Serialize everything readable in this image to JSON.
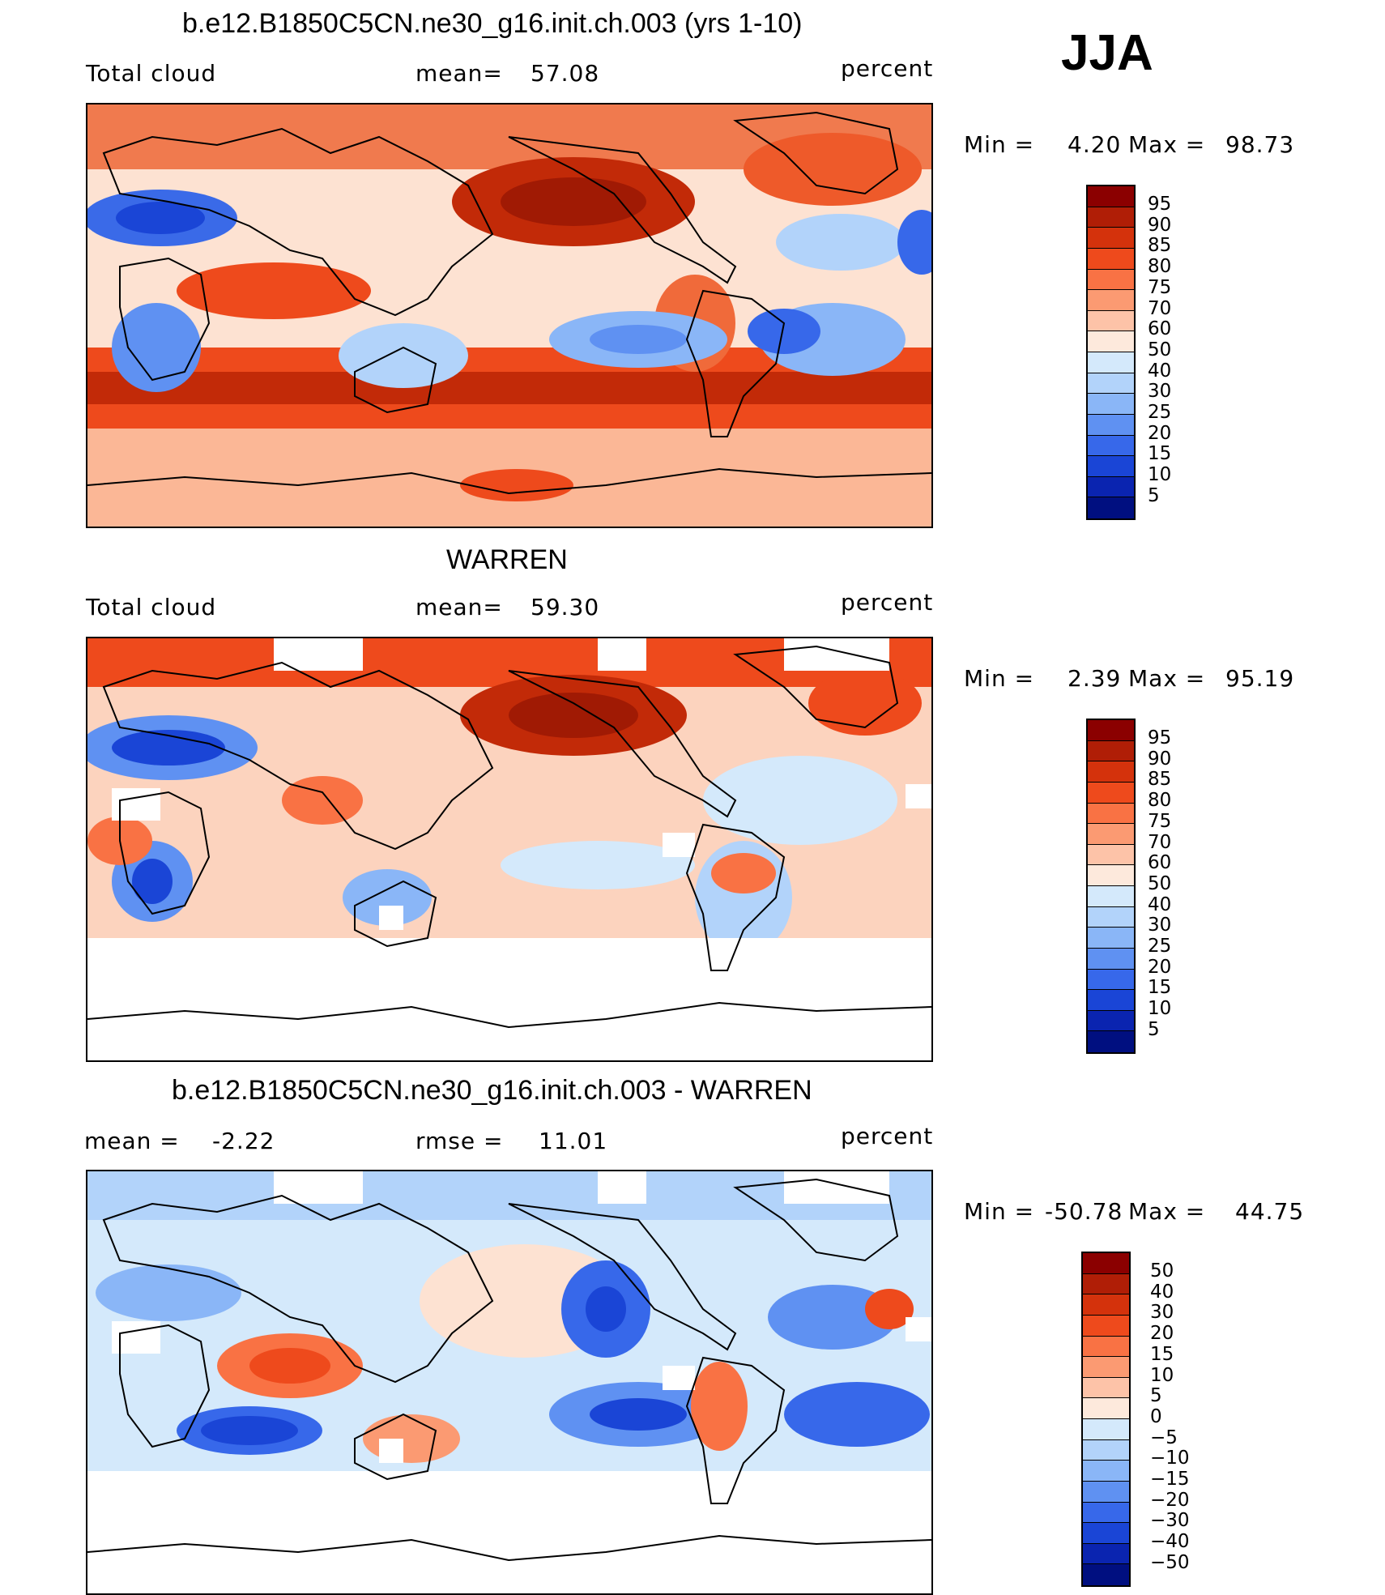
{
  "season": "JJA",
  "panels": [
    {
      "title": "b.e12.B1850C5CN.ne30_g16.init.ch.003 (yrs 1-10)",
      "left_label": "Total cloud",
      "mid_label": "mean=",
      "mid_value": "57.08",
      "units": "percent",
      "min_label": "Min  =",
      "min_value": "4.20",
      "max_label": "Max  =",
      "max_value": "98.73",
      "levels": [
        "95",
        "90",
        "85",
        "80",
        "75",
        "70",
        "60",
        "50",
        "40",
        "30",
        "25",
        "20",
        "15",
        "10",
        "5"
      ],
      "colors": [
        "#8b0000",
        "#b01e06",
        "#d4320c",
        "#ee4a1c",
        "#f97244",
        "#fb9a72",
        "#fdc3a8",
        "#fde9dc",
        "#d4e9fb",
        "#b2d3fa",
        "#8ab6f7",
        "#5f91f2",
        "#3768ea",
        "#1a45d6",
        "#0a24b0",
        "#000f80"
      ]
    },
    {
      "title": "WARREN",
      "left_label": "Total cloud",
      "mid_label": "mean=",
      "mid_value": "59.30",
      "units": "percent",
      "min_label": "Min  =",
      "min_value": "2.39",
      "max_label": "Max  =",
      "max_value": "95.19",
      "levels": [
        "95",
        "90",
        "85",
        "80",
        "75",
        "70",
        "60",
        "50",
        "40",
        "30",
        "25",
        "20",
        "15",
        "10",
        "5"
      ],
      "colors": [
        "#8b0000",
        "#b01e06",
        "#d4320c",
        "#ee4a1c",
        "#f97244",
        "#fb9a72",
        "#fdc3a8",
        "#fde9dc",
        "#d4e9fb",
        "#b2d3fa",
        "#8ab6f7",
        "#5f91f2",
        "#3768ea",
        "#1a45d6",
        "#0a24b0",
        "#000f80"
      ]
    },
    {
      "title": "b.e12.B1850C5CN.ne30_g16.init.ch.003 - WARREN",
      "left_label": "mean =",
      "left_value": "-2.22",
      "mid_label": "rmse =",
      "mid_value": "11.01",
      "units": "percent",
      "min_label": "Min  =",
      "min_value": "-50.78",
      "max_label": "Max  =",
      "max_value": "44.75",
      "levels": [
        "50",
        "40",
        "30",
        "20",
        "15",
        "10",
        "5",
        "0",
        "-5",
        "-10",
        "-15",
        "-20",
        "-30",
        "-40",
        "-50"
      ],
      "colors": [
        "#8b0000",
        "#b01e06",
        "#d4320c",
        "#ee4a1c",
        "#f97244",
        "#fb9a72",
        "#fdc3a8",
        "#fde9dc",
        "#d4e9fb",
        "#b2d3fa",
        "#8ab6f7",
        "#5f91f2",
        "#3768ea",
        "#1a45d6",
        "#0a24b0",
        "#000f80"
      ]
    }
  ],
  "chart_data": [
    {
      "type": "heatmap",
      "title": "b.e12.B1850C5CN.ne30_g16.init.ch.003 (yrs 1-10)",
      "variable": "Total cloud",
      "units": "percent",
      "mean": 57.08,
      "min": 4.2,
      "max": 98.73,
      "contour_levels": [
        5,
        10,
        15,
        20,
        25,
        30,
        40,
        50,
        60,
        70,
        75,
        80,
        85,
        90,
        95
      ]
    },
    {
      "type": "heatmap",
      "title": "WARREN",
      "variable": "Total cloud",
      "units": "percent",
      "mean": 59.3,
      "min": 2.39,
      "max": 95.19,
      "contour_levels": [
        5,
        10,
        15,
        20,
        25,
        30,
        40,
        50,
        60,
        70,
        75,
        80,
        85,
        90,
        95
      ]
    },
    {
      "type": "heatmap",
      "title": "b.e12.B1850C5CN.ne30_g16.init.ch.003 - WARREN",
      "units": "percent",
      "mean": -2.22,
      "rmse": 11.01,
      "min": -50.78,
      "max": 44.75,
      "contour_levels": [
        -50,
        -40,
        -30,
        -20,
        -15,
        -10,
        -5,
        0,
        5,
        10,
        15,
        20,
        30,
        40,
        50
      ]
    }
  ]
}
